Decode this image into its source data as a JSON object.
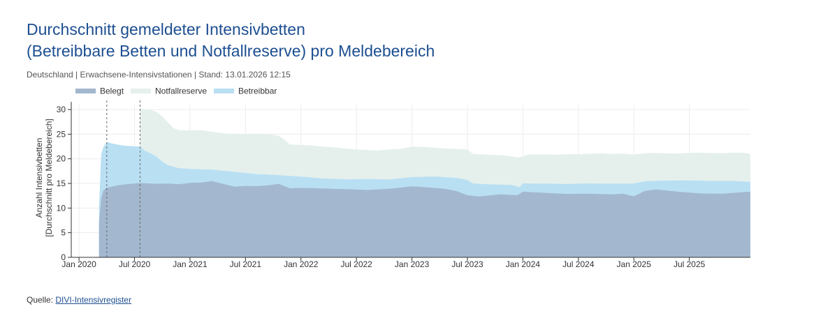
{
  "title_line1": "Durchschnitt gemeldeter Intensivbetten",
  "title_line2": "(Betreibbare Betten und Notfallreserve) pro Meldebereich",
  "subtitle": "Deutschland | Erwachsene-Intensivstationen | Stand: 13.01.2026 12:15",
  "source_label": "Quelle:",
  "source_link": "DIVI-Intensivregister",
  "colors": {
    "belegt": "#a3b8cf",
    "notfallreserve": "#e5f0ec",
    "betreibbar": "#b9dff3",
    "axis": "#333333",
    "grid": "#ececec",
    "marker": "#666666"
  },
  "chart_data": {
    "type": "area",
    "title": "Durchschnitt gemeldeter Intensivbetten (Betreibbare Betten und Notfallreserve) pro Meldebereich",
    "ylabel_line1": "Anzahl Intensivbetten",
    "ylabel_line2": "[Durchschnitt pro Meldebereich]",
    "xlabel": "",
    "ylim": [
      0,
      31
    ],
    "yticks": [
      0,
      5,
      10,
      15,
      20,
      25,
      30
    ],
    "xlim": [
      2019.93,
      2026.05
    ],
    "xticks": [
      {
        "x": 2020.0,
        "label": "Jan 2020"
      },
      {
        "x": 2020.5,
        "label": "Jul 2020"
      },
      {
        "x": 2021.0,
        "label": "Jan 2021"
      },
      {
        "x": 2021.5,
        "label": "Jul 2021"
      },
      {
        "x": 2022.0,
        "label": "Jan 2022"
      },
      {
        "x": 2022.5,
        "label": "Jul 2022"
      },
      {
        "x": 2023.0,
        "label": "Jan 2023"
      },
      {
        "x": 2023.5,
        "label": "Jul 2023"
      },
      {
        "x": 2024.0,
        "label": "Jan 2024"
      },
      {
        "x": 2024.5,
        "label": "Jul 2024"
      },
      {
        "x": 2025.0,
        "label": "Jan 2025"
      },
      {
        "x": 2025.5,
        "label": "Jul 2025"
      }
    ],
    "legend": [
      "Belegt",
      "Notfallreserve",
      "Betreibbar"
    ],
    "legend_position": "top-left",
    "markers": [
      2020.25,
      2020.55
    ],
    "series": [
      {
        "name": "Notfallreserve",
        "key": "notfallreserve",
        "start": 2020.55,
        "points": [
          [
            2020.55,
            30.2
          ],
          [
            2020.6,
            30.0
          ],
          [
            2020.65,
            29.8
          ],
          [
            2020.7,
            29.4
          ],
          [
            2020.75,
            28.5
          ],
          [
            2020.8,
            27.3
          ],
          [
            2020.85,
            26.2
          ],
          [
            2020.9,
            25.8
          ],
          [
            2021.0,
            25.8
          ],
          [
            2021.1,
            25.9
          ],
          [
            2021.2,
            25.6
          ],
          [
            2021.3,
            25.3
          ],
          [
            2021.4,
            25.1
          ],
          [
            2021.5,
            25.1
          ],
          [
            2021.6,
            25.1
          ],
          [
            2021.7,
            25.0
          ],
          [
            2021.8,
            24.6
          ],
          [
            2021.85,
            23.8
          ],
          [
            2021.9,
            22.8
          ],
          [
            2022.0,
            22.7
          ],
          [
            2022.1,
            22.6
          ],
          [
            2022.2,
            22.4
          ],
          [
            2022.3,
            22.3
          ],
          [
            2022.4,
            22.1
          ],
          [
            2022.5,
            22.0
          ],
          [
            2022.6,
            21.9
          ],
          [
            2022.7,
            21.8
          ],
          [
            2022.8,
            22.0
          ],
          [
            2022.9,
            22.1
          ],
          [
            2023.0,
            22.5
          ],
          [
            2023.1,
            22.4
          ],
          [
            2023.2,
            22.2
          ],
          [
            2023.3,
            22.0
          ],
          [
            2023.4,
            21.9
          ],
          [
            2023.5,
            21.8
          ],
          [
            2023.55,
            20.9
          ],
          [
            2023.6,
            20.9
          ],
          [
            2023.7,
            20.8
          ],
          [
            2023.8,
            20.8
          ],
          [
            2023.9,
            20.6
          ],
          [
            2023.95,
            20.4
          ],
          [
            2024.0,
            20.6
          ],
          [
            2024.05,
            21.0
          ],
          [
            2024.1,
            21.0
          ],
          [
            2024.2,
            20.9
          ],
          [
            2024.3,
            20.8
          ],
          [
            2024.4,
            20.9
          ],
          [
            2024.5,
            20.8
          ],
          [
            2024.6,
            20.9
          ],
          [
            2024.7,
            21.0
          ],
          [
            2024.8,
            20.9
          ],
          [
            2024.9,
            21.0
          ],
          [
            2025.0,
            20.9
          ],
          [
            2025.1,
            21.2
          ],
          [
            2025.2,
            21.3
          ],
          [
            2025.3,
            21.2
          ],
          [
            2025.4,
            21.2
          ],
          [
            2025.5,
            21.3
          ],
          [
            2025.6,
            21.3
          ],
          [
            2025.7,
            21.2
          ],
          [
            2025.8,
            21.1
          ],
          [
            2025.9,
            21.2
          ],
          [
            2026.0,
            21.1
          ],
          [
            2026.05,
            21.0
          ]
        ]
      },
      {
        "name": "Betreibbar",
        "key": "betreibbar",
        "start": 2020.18,
        "points": [
          [
            2020.18,
            10.0
          ],
          [
            2020.2,
            21.0
          ],
          [
            2020.22,
            22.5
          ],
          [
            2020.25,
            23.5
          ],
          [
            2020.3,
            23.2
          ],
          [
            2020.4,
            22.8
          ],
          [
            2020.5,
            22.6
          ],
          [
            2020.55,
            22.5
          ],
          [
            2020.6,
            21.5
          ],
          [
            2020.65,
            21.0
          ],
          [
            2020.7,
            20.3
          ],
          [
            2020.75,
            19.3
          ],
          [
            2020.8,
            18.6
          ],
          [
            2020.9,
            18.0
          ],
          [
            2021.0,
            17.9
          ],
          [
            2021.2,
            17.8
          ],
          [
            2021.4,
            17.4
          ],
          [
            2021.6,
            17.0
          ],
          [
            2021.8,
            16.8
          ],
          [
            2022.0,
            16.5
          ],
          [
            2022.2,
            16.1
          ],
          [
            2022.4,
            15.9
          ],
          [
            2022.6,
            15.9
          ],
          [
            2022.8,
            15.8
          ],
          [
            2023.0,
            16.2
          ],
          [
            2023.2,
            16.3
          ],
          [
            2023.4,
            16.0
          ],
          [
            2023.5,
            15.6
          ],
          [
            2023.55,
            14.9
          ],
          [
            2023.7,
            14.8
          ],
          [
            2023.9,
            14.7
          ],
          [
            2023.97,
            14.3
          ],
          [
            2024.0,
            15.1
          ],
          [
            2024.2,
            15.1
          ],
          [
            2024.4,
            15.0
          ],
          [
            2024.6,
            15.1
          ],
          [
            2024.8,
            15.0
          ],
          [
            2025.0,
            15.0
          ],
          [
            2025.1,
            15.4
          ],
          [
            2025.3,
            15.5
          ],
          [
            2025.5,
            15.5
          ],
          [
            2025.7,
            15.4
          ],
          [
            2025.9,
            15.4
          ],
          [
            2026.05,
            15.3
          ]
        ]
      },
      {
        "name": "Belegt",
        "key": "belegt",
        "start": 2020.18,
        "points": [
          [
            2020.18,
            7.0
          ],
          [
            2020.2,
            12.0
          ],
          [
            2020.22,
            13.5
          ],
          [
            2020.25,
            14.0
          ],
          [
            2020.35,
            14.5
          ],
          [
            2020.45,
            14.8
          ],
          [
            2020.55,
            15.0
          ],
          [
            2020.7,
            14.9
          ],
          [
            2020.8,
            15.0
          ],
          [
            2020.9,
            14.9
          ],
          [
            2021.0,
            15.2
          ],
          [
            2021.1,
            15.3
          ],
          [
            2021.2,
            15.6
          ],
          [
            2021.3,
            15.0
          ],
          [
            2021.4,
            14.4
          ],
          [
            2021.5,
            14.5
          ],
          [
            2021.6,
            14.4
          ],
          [
            2021.7,
            14.5
          ],
          [
            2021.8,
            14.8
          ],
          [
            2021.9,
            13.9
          ],
          [
            2022.0,
            14.0
          ],
          [
            2022.2,
            13.9
          ],
          [
            2022.4,
            13.8
          ],
          [
            2022.6,
            13.7
          ],
          [
            2022.8,
            14.0
          ],
          [
            2023.0,
            14.5
          ],
          [
            2023.1,
            14.4
          ],
          [
            2023.2,
            14.2
          ],
          [
            2023.3,
            14.0
          ],
          [
            2023.4,
            13.5
          ],
          [
            2023.5,
            12.6
          ],
          [
            2023.6,
            12.3
          ],
          [
            2023.8,
            12.7
          ],
          [
            2023.95,
            12.5
          ],
          [
            2024.0,
            13.2
          ],
          [
            2024.2,
            13.0
          ],
          [
            2024.4,
            12.8
          ],
          [
            2024.6,
            12.9
          ],
          [
            2024.8,
            12.8
          ],
          [
            2024.9,
            13.0
          ],
          [
            2025.0,
            12.5
          ],
          [
            2025.1,
            13.6
          ],
          [
            2025.2,
            13.9
          ],
          [
            2025.4,
            13.4
          ],
          [
            2025.6,
            13.0
          ],
          [
            2025.8,
            12.9
          ],
          [
            2026.0,
            13.2
          ],
          [
            2026.05,
            13.3
          ]
        ]
      }
    ]
  }
}
